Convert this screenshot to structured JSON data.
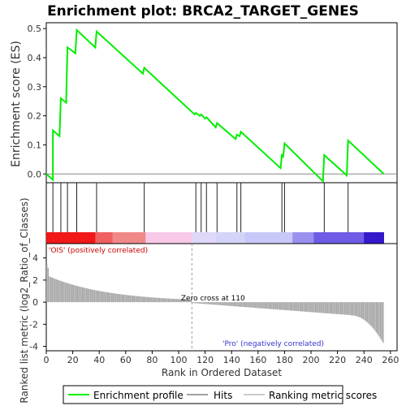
{
  "chart_data": {
    "type": "line",
    "title": "Enrichment plot: BRCA2_TARGET_GENES",
    "xlabel": "Rank in Ordered Dataset",
    "ylabel_top": "Enrichment score (ES)",
    "ylabel_bottom": "Ranked list metric (log2_Ratio_of_Classes)",
    "xlim": [
      0,
      265
    ],
    "ylim_top": [
      -0.03,
      0.52
    ],
    "ylim_bottom": [
      -4.4,
      5.3
    ],
    "x_ticks": [
      0,
      20,
      40,
      60,
      80,
      100,
      120,
      140,
      160,
      180,
      200,
      220,
      240,
      260
    ],
    "y_ticks_top": [
      0.0,
      0.1,
      0.2,
      0.3,
      0.4,
      0.5
    ],
    "y_tick_labels_top": [
      "0.0",
      "0.1",
      "0.2",
      "0.3",
      "0.4",
      "0.5"
    ],
    "y_ticks_bottom": [
      -4,
      -2,
      0,
      2,
      4
    ],
    "enrichment_profile": [
      [
        0,
        0.0
      ],
      [
        5,
        -0.02
      ],
      [
        5,
        0.15
      ],
      [
        10,
        0.13
      ],
      [
        11,
        0.26
      ],
      [
        15,
        0.245
      ],
      [
        16,
        0.435
      ],
      [
        22,
        0.415
      ],
      [
        23,
        0.495
      ],
      [
        37,
        0.435
      ],
      [
        38,
        0.49
      ],
      [
        73,
        0.345
      ],
      [
        74,
        0.365
      ],
      [
        112,
        0.205
      ],
      [
        113,
        0.21
      ],
      [
        116,
        0.2
      ],
      [
        117,
        0.205
      ],
      [
        120,
        0.19
      ],
      [
        121,
        0.195
      ],
      [
        128,
        0.16
      ],
      [
        129,
        0.175
      ],
      [
        143,
        0.12
      ],
      [
        144,
        0.135
      ],
      [
        146,
        0.13
      ],
      [
        147,
        0.145
      ],
      [
        177,
        0.02
      ],
      [
        178,
        0.065
      ],
      [
        179,
        0.06
      ],
      [
        180,
        0.105
      ],
      [
        209,
        -0.025
      ],
      [
        210,
        0.065
      ],
      [
        227,
        -0.005
      ],
      [
        228,
        0.115
      ],
      [
        255,
        0.0
      ]
    ],
    "hits": [
      5,
      11,
      16,
      23,
      38,
      74,
      113,
      117,
      121,
      129,
      144,
      147,
      178,
      180,
      210,
      228
    ],
    "zero_cross": 110,
    "zero_cross_label": "Zero cross at 110",
    "positive_label": "'OIS' (positively correlated)",
    "negative_label": "'Pro' (negatively correlated)",
    "n_genes": 255,
    "colors": {
      "enrichment": "#00ee00",
      "positive_text": "#cc0000",
      "negative_text": "#3333cc",
      "metric": "#aaaaaa"
    },
    "legend": [
      "Enrichment profile",
      "Hits",
      "Ranking metric scores"
    ]
  }
}
